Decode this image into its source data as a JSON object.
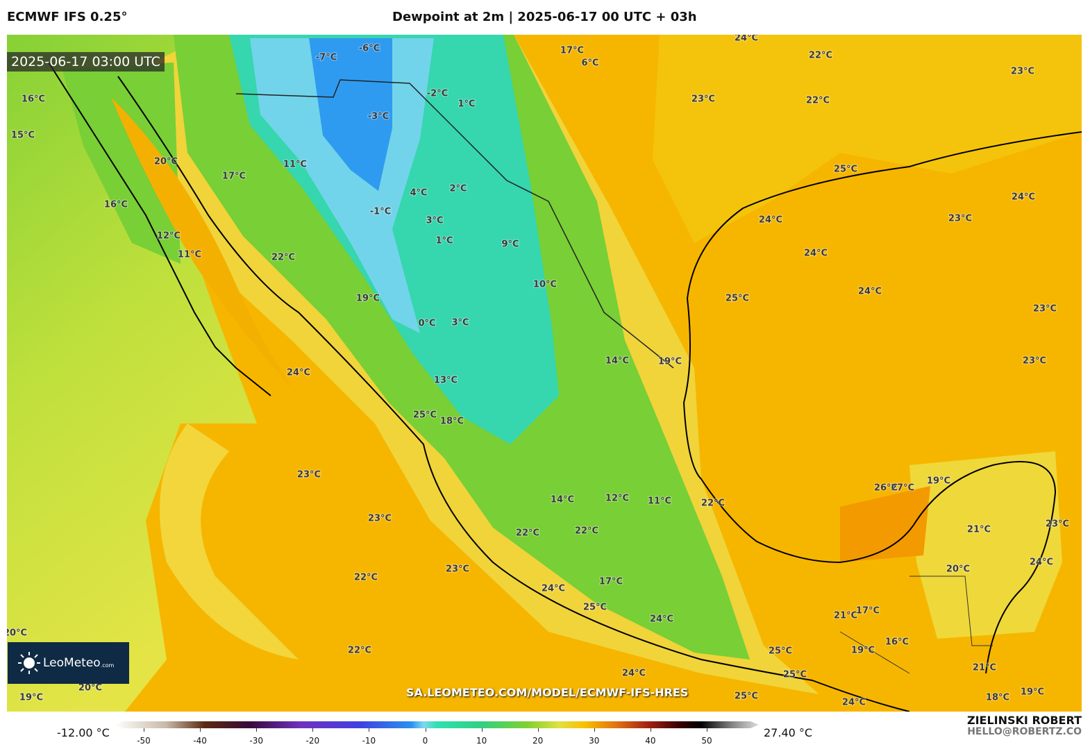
{
  "header": {
    "model": "ECMWF IFS 0.25°",
    "title": "Dewpoint at 2m | 2025-06-17 00 UTC + 03h"
  },
  "map": {
    "timestamp": "2025-06-17 03:00 UTC",
    "watermark": "SA.LEOMETEO.COM/MODEL/ECMWF-IFS-HRES",
    "contour_labels": [
      "24°C",
      "22°C",
      "23°C",
      "22°C",
      "23°C",
      "25°C",
      "24°C",
      "24°C",
      "23°C",
      "24°C",
      "24°C",
      "25°C",
      "23°C",
      "23°C",
      "19°C",
      "14°C",
      "10°C",
      "9°C",
      "3°C",
      "1°C",
      "2°C",
      "4°C",
      "-1°C",
      "0°C",
      "3°C",
      "13°C",
      "18°C",
      "25°C",
      "24°C",
      "23°C",
      "23°C",
      "22°C",
      "23°C",
      "22°C",
      "24°C",
      "25°C",
      "25°C",
      "25°C",
      "24°C",
      "20°C",
      "19°C",
      "20°C",
      "17°C",
      "16°C",
      "15°C",
      "16°C",
      "11°C",
      "17°C",
      "6°C",
      "-7°C",
      "-6°C",
      "-3°C",
      "-2°C",
      "1°C",
      "27°C",
      "26°C",
      "19°C",
      "21°C",
      "20°C",
      "24°C",
      "23°C",
      "12°C",
      "11°C",
      "22°C",
      "14°C",
      "22°C",
      "22°C",
      "17°C",
      "25°C",
      "24°C",
      "24°C",
      "21°C",
      "17°C",
      "19°C",
      "16°C",
      "21°C",
      "18°C",
      "19°C",
      "22°C",
      "19°C",
      "20°C",
      "12°C",
      "11°C"
    ]
  },
  "logo": {
    "name": "LeoMeteo",
    "suffix": ".com"
  },
  "colorbar": {
    "min_label": "-12.00 °C",
    "max_label": "27.40 °C",
    "ticks": [
      -50,
      -40,
      -30,
      -20,
      -10,
      0,
      10,
      20,
      30,
      40,
      50
    ]
  },
  "footer": {
    "author": "ZIELINSKI ROBERT",
    "email": "HELLO@ROBERTZ.CO"
  }
}
